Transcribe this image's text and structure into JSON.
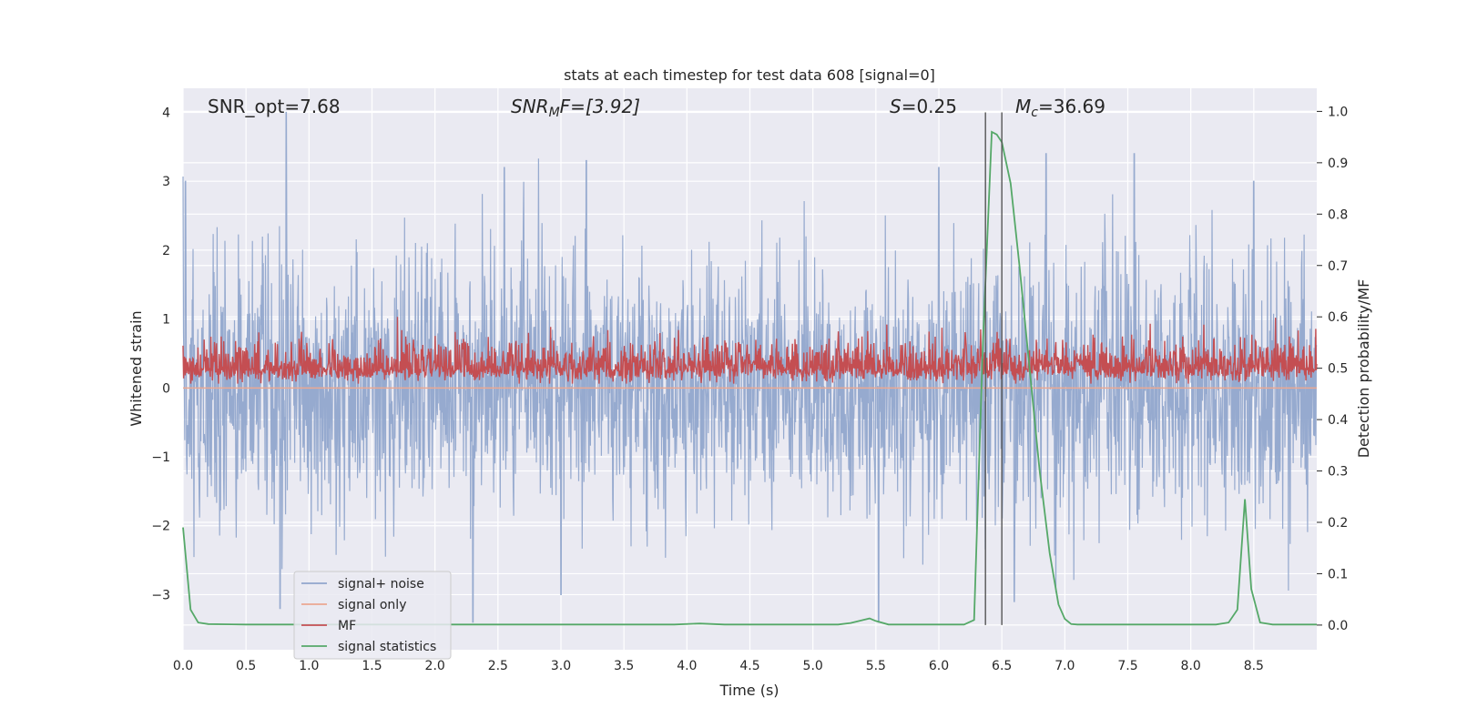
{
  "chart_data": {
    "type": "line",
    "title": "stats at each timestep for test data 608 [signal=0]",
    "xlabel": "Time (s)",
    "ylabel": "Whitened strain",
    "y2label": "Detection probability/MF",
    "xlim": [
      0.0,
      9.0
    ],
    "ylim": [
      -3.8,
      4.35
    ],
    "y2lim": [
      -0.048,
      1.045
    ],
    "xticks": [
      0.0,
      0.5,
      1.0,
      1.5,
      2.0,
      2.5,
      3.0,
      3.5,
      4.0,
      4.5,
      5.0,
      5.5,
      6.0,
      6.5,
      7.0,
      7.5,
      8.0,
      8.5
    ],
    "xtick_labels": [
      "0.0",
      "0.5",
      "1.0",
      "1.5",
      "2.0",
      "2.5",
      "3.0",
      "3.5",
      "4.0",
      "4.5",
      "5.0",
      "5.5",
      "6.0",
      "6.5",
      "7.0",
      "7.5",
      "8.0",
      "8.5"
    ],
    "yticks": [
      -3,
      -2,
      -1,
      0,
      1,
      2,
      3,
      4
    ],
    "ytick_labels": [
      "−3",
      "−2",
      "−1",
      "0",
      "1",
      "2",
      "3",
      "4"
    ],
    "y2ticks": [
      0.0,
      0.1,
      0.2,
      0.3,
      0.4,
      0.5,
      0.6,
      0.7,
      0.8,
      0.9,
      1.0
    ],
    "y2tick_labels": [
      "0.0",
      "0.1",
      "0.2",
      "0.3",
      "0.4",
      "0.5",
      "0.6",
      "0.7",
      "0.8",
      "0.9",
      "1.0"
    ],
    "grid": true,
    "legend": {
      "placement": "lower-left",
      "entries": [
        {
          "name": "signal+ noise",
          "color": "#91a6cc"
        },
        {
          "name": "signal only",
          "color": "#eba892"
        },
        {
          "name": "MF",
          "color": "#c44e52"
        },
        {
          "name": "signal statistics",
          "color": "#55a868"
        }
      ]
    },
    "annotations": {
      "snr_opt": "SNR_opt=7.68",
      "snr_mf_base": "SNR",
      "snr_mf_sub": "M",
      "snr_mf_rest": "F=[3.92]",
      "s_italic": "S",
      "s_rest": "=0.25",
      "mc_italic": "M",
      "mc_sub": "c",
      "mc_rest": "=36.69"
    },
    "vlines": [
      6.37,
      6.5
    ],
    "series": [
      {
        "name": "signal+ noise",
        "axis": "left",
        "color": "#91a6cc",
        "description_range": [
          -3.4,
          4.0
        ],
        "peaks": [
          [
            0.02,
            3.0
          ],
          [
            0.82,
            4.0
          ],
          [
            3.2,
            3.3
          ],
          [
            2.55,
            3.2
          ],
          [
            6.0,
            3.2
          ],
          [
            8.5,
            3.0
          ],
          [
            7.55,
            3.4
          ],
          [
            6.85,
            3.4
          ],
          [
            0.77,
            -3.2
          ],
          [
            2.3,
            -3.4
          ],
          [
            5.52,
            -3.4
          ],
          [
            6.6,
            -3.1
          ],
          [
            3.0,
            -3.0
          ]
        ]
      },
      {
        "name": "signal only",
        "axis": "left",
        "color": "#eba892",
        "values_const": 0.0
      },
      {
        "name": "MF",
        "axis": "right",
        "color": "#c44e52",
        "description_range": [
          0.47,
          0.6
        ]
      },
      {
        "name": "signal statistics",
        "axis": "right",
        "color": "#55a868",
        "x": [
          0.0,
          0.06,
          0.12,
          0.2,
          0.5,
          1.0,
          2.0,
          3.0,
          3.9,
          4.1,
          4.3,
          5.0,
          5.2,
          5.3,
          5.4,
          5.45,
          5.5,
          5.6,
          6.0,
          6.2,
          6.28,
          6.35,
          6.42,
          6.46,
          6.5,
          6.57,
          6.64,
          6.72,
          6.8,
          6.88,
          6.95,
          7.0,
          7.05,
          7.1,
          7.5,
          8.0,
          8.2,
          8.3,
          8.37,
          8.43,
          8.48,
          8.55,
          8.65,
          9.0
        ],
        "y": [
          0.19,
          0.03,
          0.005,
          0.002,
          0.001,
          0.001,
          0.001,
          0.001,
          0.001,
          0.003,
          0.001,
          0.001,
          0.001,
          0.004,
          0.01,
          0.013,
          0.008,
          0.001,
          0.001,
          0.001,
          0.01,
          0.55,
          0.96,
          0.955,
          0.94,
          0.86,
          0.7,
          0.5,
          0.3,
          0.14,
          0.04,
          0.012,
          0.002,
          0.001,
          0.001,
          0.001,
          0.001,
          0.005,
          0.03,
          0.245,
          0.07,
          0.005,
          0.001,
          0.001
        ]
      }
    ]
  }
}
